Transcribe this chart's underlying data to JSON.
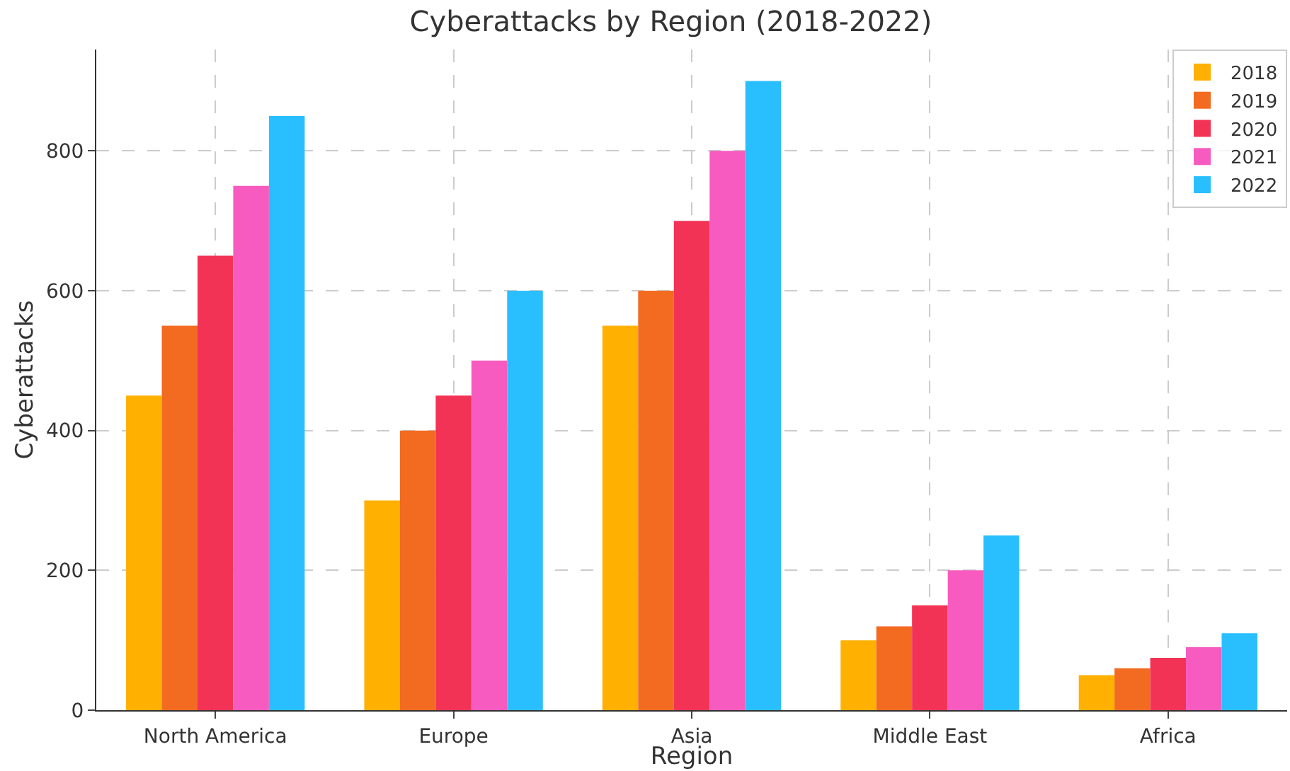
{
  "chart_data": {
    "type": "bar",
    "title": "Cyberattacks by Region (2018-2022)",
    "xlabel": "Region",
    "ylabel": "Cyberattacks",
    "categories": [
      "North America",
      "Europe",
      "Asia",
      "Middle East",
      "Africa"
    ],
    "series": [
      {
        "name": "2018",
        "color": "#ffb000",
        "values": [
          450,
          300,
          550,
          100,
          50
        ]
      },
      {
        "name": "2019",
        "color": "#f26b21",
        "values": [
          550,
          400,
          600,
          120,
          60
        ]
      },
      {
        "name": "2020",
        "color": "#f23355",
        "values": [
          650,
          450,
          700,
          150,
          75
        ]
      },
      {
        "name": "2021",
        "color": "#f75bbf",
        "values": [
          750,
          500,
          800,
          200,
          90
        ]
      },
      {
        "name": "2022",
        "color": "#29bfff",
        "values": [
          850,
          600,
          900,
          250,
          110
        ]
      }
    ],
    "ylim": [
      0,
      945
    ],
    "yticks": [
      0,
      200,
      400,
      600,
      800
    ],
    "grid": true,
    "legend": "top right"
  }
}
